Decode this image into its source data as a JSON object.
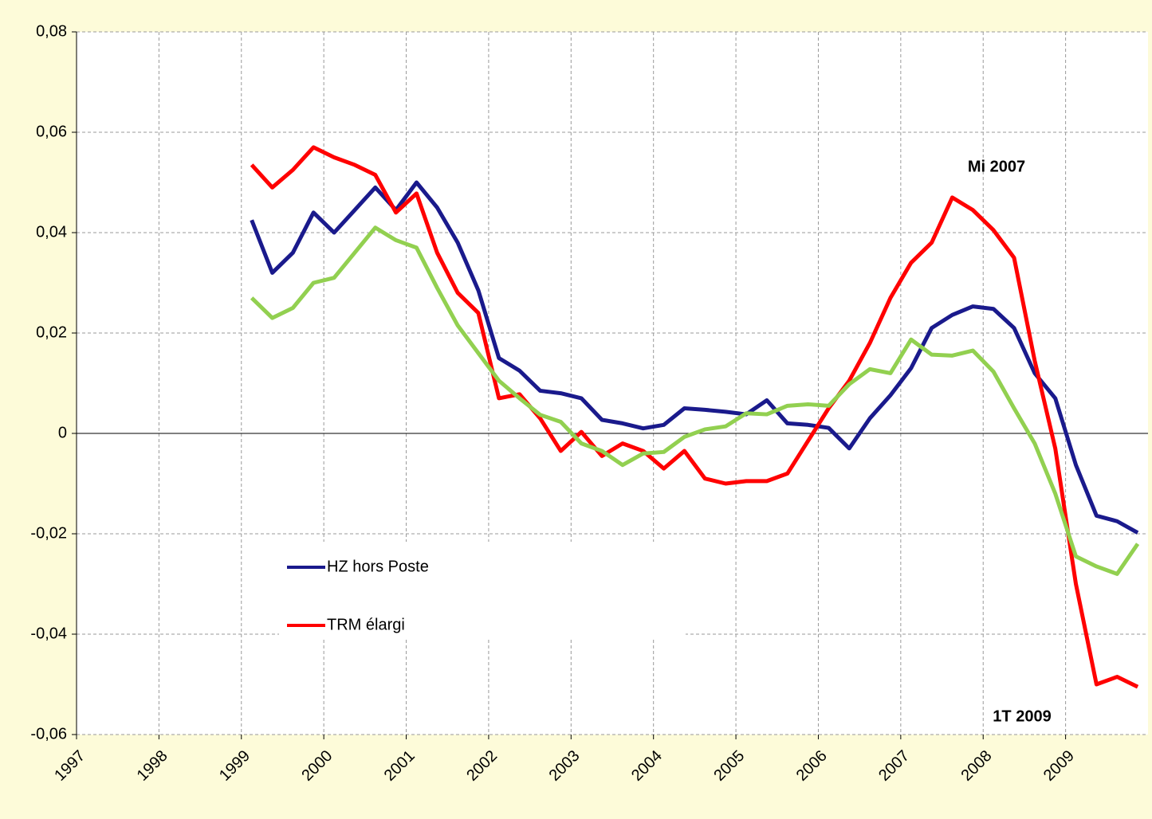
{
  "chart_data": {
    "type": "line",
    "series": [
      {
        "name": "HZ hors Poste",
        "color": "#1a1a8c",
        "values": [
          0.0425,
          0.032,
          0.036,
          0.044,
          0.04,
          0.0445,
          0.049,
          0.0445,
          0.05,
          0.045,
          0.038,
          0.0285,
          0.015,
          0.0125,
          0.0085,
          0.008,
          0.007,
          0.0027,
          0.002,
          0.001,
          0.0017,
          0.005,
          0.0047,
          0.0043,
          0.0038,
          0.0066,
          0.002,
          0.0017,
          0.0011,
          -0.003,
          0.003,
          0.0076,
          0.013,
          0.021,
          0.0236,
          0.0253,
          0.0248,
          0.021,
          0.012,
          0.007,
          -0.0063,
          -0.0164,
          -0.0175,
          -0.0198
        ]
      },
      {
        "name": "TRM élargi",
        "color": "#ff0000",
        "values": [
          0.0535,
          0.049,
          0.0525,
          0.057,
          0.055,
          0.0535,
          0.0515,
          0.044,
          0.0478,
          0.036,
          0.028,
          0.024,
          0.007,
          0.0078,
          0.003,
          -0.0035,
          0.0003,
          -0.0045,
          -0.002,
          -0.0035,
          -0.007,
          -0.0035,
          -0.009,
          -0.01,
          -0.0095,
          -0.0095,
          -0.008,
          -0.0015,
          0.005,
          0.0105,
          0.018,
          0.027,
          0.034,
          0.038,
          0.047,
          0.0445,
          0.0405,
          0.035,
          0.0145,
          -0.003,
          -0.03,
          -0.05,
          -0.0485,
          -0.0505
        ]
      },
      {
        "color": "#92d050",
        "values": [
          0.027,
          0.023,
          0.025,
          0.03,
          0.031,
          0.036,
          0.041,
          0.0385,
          0.037,
          0.029,
          0.0215,
          0.016,
          0.0105,
          0.007,
          0.0037,
          0.0023,
          -0.002,
          -0.0035,
          -0.0063,
          -0.004,
          -0.0037,
          -0.0007,
          0.0008,
          0.0014,
          0.004,
          0.0038,
          0.0055,
          0.0058,
          0.0055,
          0.0098,
          0.0128,
          0.012,
          0.0187,
          0.0157,
          0.0155,
          0.0165,
          0.0123,
          0.005,
          -0.002,
          -0.012,
          -0.0245,
          -0.0265,
          -0.028,
          -0.022
        ]
      }
    ],
    "x": [
      1999.125,
      1999.375,
      1999.625,
      1999.875,
      2000.125,
      2000.375,
      2000.625,
      2000.875,
      2001.125,
      2001.375,
      2001.625,
      2001.875,
      2002.125,
      2002.375,
      2002.625,
      2002.875,
      2003.125,
      2003.375,
      2003.625,
      2003.875,
      2004.125,
      2004.375,
      2004.625,
      2004.875,
      2005.125,
      2005.375,
      2005.625,
      2005.875,
      2006.125,
      2006.375,
      2006.625,
      2006.875,
      2007.125,
      2007.375,
      2007.625,
      2007.875,
      2008.125,
      2008.375,
      2008.625,
      2008.875,
      2009.125,
      2009.375,
      2009.625,
      2009.875
    ],
    "xlim": [
      1997,
      2010
    ],
    "xticks": [
      1997,
      1998,
      1999,
      2000,
      2001,
      2002,
      2003,
      2004,
      2005,
      2006,
      2007,
      2008,
      2009
    ],
    "ylim": [
      -0.06,
      0.08
    ],
    "yticks": [
      {
        "value": -0.06,
        "label": "-0,06"
      },
      {
        "value": -0.04,
        "label": "-0,04"
      },
      {
        "value": -0.02,
        "label": "-0,02"
      },
      0,
      {
        "value": 0.02,
        "label": "0,02"
      },
      {
        "value": 0.04,
        "label": "0,04"
      },
      {
        "value": 0.06,
        "label": "0,06"
      },
      {
        "value": 0.08,
        "label": "0,08"
      }
    ],
    "grid": true,
    "annotations": [
      {
        "text": "Mi 2007",
        "color": "#2e3192"
      },
      {
        "text": "1T 2009",
        "color": "#2e3192"
      }
    ]
  }
}
